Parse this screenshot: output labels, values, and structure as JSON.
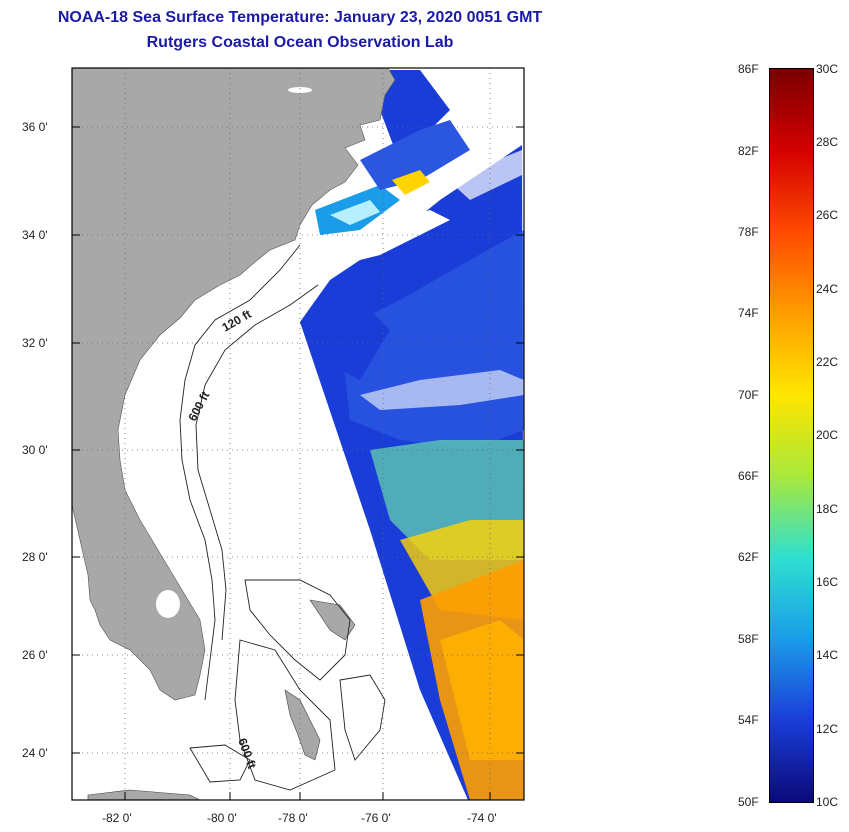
{
  "title": {
    "line1": "NOAA-18 Sea Surface Temperature:  January 23, 2020 0051 GMT",
    "line2": "Rutgers Coastal Ocean Observation Lab"
  },
  "map": {
    "lat_labels": [
      "36 0'",
      "34 0'",
      "32 0'",
      "30 0'",
      "28 0'",
      "26 0'",
      "24 0'"
    ],
    "lon_labels": [
      "-82 0'",
      "-80 0'",
      "-78 0'",
      "-76 0'",
      "-74 0'"
    ],
    "contour_labels": [
      "120 ft",
      "600 ft",
      "600 ft"
    ],
    "colors": {
      "land": "#a8a8a8",
      "ocean_nodata": "#ffffff",
      "title": "#1a1aa6"
    }
  },
  "colorbar": {
    "fahrenheit_labels": [
      "86F",
      "82F",
      "78F",
      "74F",
      "70F",
      "66F",
      "62F",
      "58F",
      "54F",
      "50F"
    ],
    "celsius_labels": [
      "30C",
      "28C",
      "26C",
      "24C",
      "22C",
      "20C",
      "18C",
      "16C",
      "14C",
      "12C",
      "10C"
    ],
    "range_f": [
      50,
      86
    ],
    "range_c": [
      10,
      30
    ],
    "colors": [
      "#7a0000",
      "#d40000",
      "#ff4a00",
      "#ff9d00",
      "#ffe600",
      "#a8e83a",
      "#2ee0d0",
      "#1a9ce8",
      "#1a3dd8",
      "#0a0a7a"
    ]
  }
}
